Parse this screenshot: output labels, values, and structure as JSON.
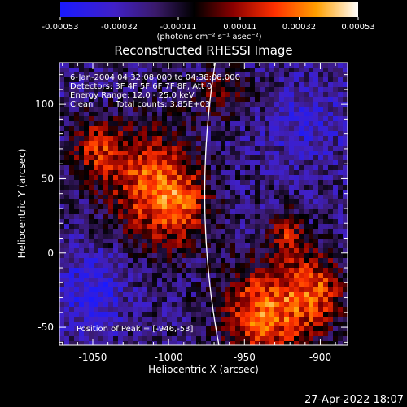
{
  "chart_data": {
    "type": "heatmap",
    "title": "Reconstructed RHESSI Image",
    "xlabel": "Heliocentric X (arcsec)",
    "ylabel": "Heliocentric Y (arcsec)",
    "xlim": [
      -1072,
      -882
    ],
    "ylim": [
      -62,
      128
    ],
    "x_ticks": [
      -1050,
      -1000,
      -950,
      -900
    ],
    "y_ticks": [
      -50,
      0,
      50,
      100
    ],
    "colorbar": {
      "ticks": [
        -0.00053,
        -0.00032,
        -0.00011,
        0.00011,
        0.00032,
        0.00053
      ],
      "tick_labels": [
        "-0.00053",
        "-0.00032",
        "-0.00011",
        "0.00011",
        "0.00032",
        "0.00053"
      ],
      "units_label": "(photons cm⁻² s⁻¹ asec⁻²)",
      "range": [
        -0.00053,
        0.00053
      ],
      "colors": [
        "#0000ff",
        "#4b0082",
        "#000000",
        "#8b0000",
        "#ff4500",
        "#ffa500",
        "#ffffff"
      ]
    },
    "annotations": {
      "time_range": "6-Jan-2004 04:32:08.000 to 04:38:08.000",
      "detectors": "Detectors: 3F 4F 5F 6F 7F 8F, Att 0",
      "energy_range": "Energy Range: 12.0 - 25.0 keV",
      "algorithm": "Clean",
      "total_counts": "Total counts: 3.85E+03",
      "peak": "Position of Peak = [-946,-53]"
    },
    "peak_position": [
      -946,
      -53
    ],
    "limb_x_center": -975
  },
  "footer": {
    "timestamp": "27-Apr-2022 18:07"
  }
}
